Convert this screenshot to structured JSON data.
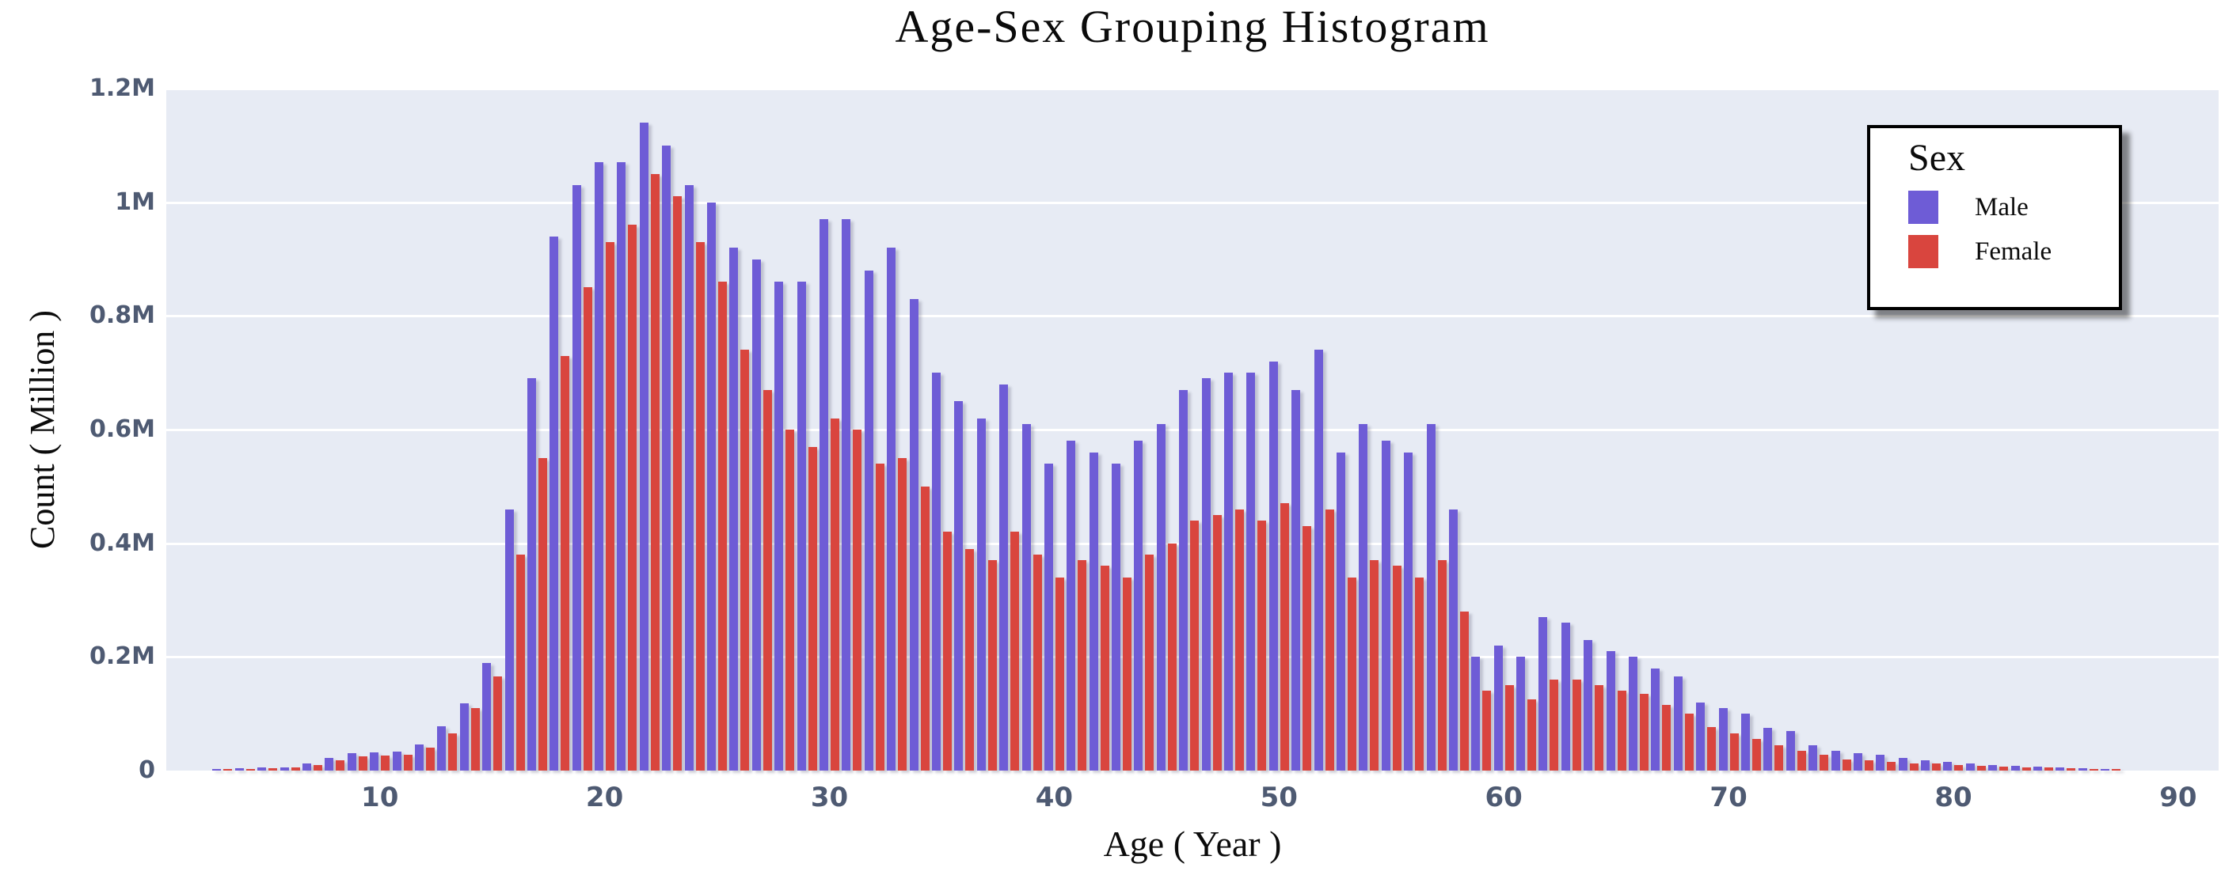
{
  "title": "Age-Sex Grouping Histogram",
  "x_axis_label": "Age ( Year )",
  "y_axis_label": "Count ( Million )",
  "legend": {
    "title": "Sex",
    "items": [
      {
        "label": "Male",
        "color": "#6e5cd6"
      },
      {
        "label": "Female",
        "color": "#d9453e"
      }
    ]
  },
  "colors": {
    "male_bar": "#6e5cd6",
    "female_bar": "#d9453e",
    "plot_background": "#e7ebf4",
    "gridline": "#ffffff",
    "tick_label": "#4e5a72",
    "text": "#0b0b0b"
  },
  "chart_data": {
    "type": "bar",
    "title": "Age-Sex Grouping Histogram",
    "xlabel": "Age ( Year )",
    "ylabel": "Count ( Million )",
    "unit": "Million",
    "grid": true,
    "legend_position": "top-right",
    "xlim": [
      0.5,
      91.8
    ],
    "ylim": [
      0,
      1.2
    ],
    "x_ticks": [
      10,
      20,
      30,
      40,
      50,
      60,
      70,
      80,
      90
    ],
    "y_ticks": [
      {
        "value": 0,
        "label": "0"
      },
      {
        "value": 0.2,
        "label": "0.2M"
      },
      {
        "value": 0.4,
        "label": "0.4M"
      },
      {
        "value": 0.6,
        "label": "0.6M"
      },
      {
        "value": 0.8,
        "label": "0.8M"
      },
      {
        "value": 1.0,
        "label": "1M"
      },
      {
        "value": 1.2,
        "label": "1.2M"
      }
    ],
    "categories": [
      3,
      4,
      5,
      6,
      7,
      8,
      9,
      10,
      11,
      12,
      13,
      14,
      15,
      16,
      17,
      18,
      19,
      20,
      21,
      22,
      23,
      24,
      25,
      26,
      27,
      28,
      29,
      30,
      31,
      32,
      33,
      34,
      35,
      36,
      37,
      38,
      39,
      40,
      41,
      42,
      43,
      44,
      45,
      46,
      47,
      48,
      49,
      50,
      51,
      52,
      53,
      54,
      55,
      56,
      57,
      58,
      59,
      60,
      61,
      62,
      63,
      64,
      65,
      66,
      67,
      68,
      69,
      70,
      71,
      72,
      73,
      74,
      75,
      76,
      77,
      78,
      79,
      80,
      81,
      82,
      83,
      84,
      85,
      86,
      87
    ],
    "series": [
      {
        "name": "Male",
        "color": "#6e5cd6",
        "values": [
          0.003,
          0.004,
          0.005,
          0.006,
          0.012,
          0.022,
          0.03,
          0.032,
          0.033,
          0.046,
          0.078,
          0.118,
          0.19,
          0.46,
          0.69,
          0.94,
          1.03,
          1.07,
          1.07,
          1.14,
          1.1,
          1.03,
          1.0,
          0.92,
          0.9,
          0.86,
          0.86,
          0.97,
          0.97,
          0.88,
          0.92,
          0.83,
          0.7,
          0.65,
          0.62,
          0.68,
          0.61,
          0.54,
          0.58,
          0.56,
          0.54,
          0.58,
          0.61,
          0.67,
          0.69,
          0.7,
          0.7,
          0.72,
          0.67,
          0.74,
          0.56,
          0.61,
          0.58,
          0.56,
          0.61,
          0.46,
          0.2,
          0.22,
          0.2,
          0.27,
          0.26,
          0.23,
          0.21,
          0.2,
          0.18,
          0.165,
          0.12,
          0.11,
          0.1,
          0.075,
          0.07,
          0.045,
          0.035,
          0.03,
          0.028,
          0.022,
          0.018,
          0.015,
          0.012,
          0.01,
          0.008,
          0.007,
          0.005,
          0.004,
          0.003
        ]
      },
      {
        "name": "Female",
        "color": "#d9453e",
        "values": [
          0.002,
          0.003,
          0.004,
          0.006,
          0.01,
          0.018,
          0.025,
          0.026,
          0.028,
          0.04,
          0.066,
          0.11,
          0.165,
          0.38,
          0.55,
          0.73,
          0.85,
          0.93,
          0.96,
          1.05,
          1.01,
          0.93,
          0.86,
          0.74,
          0.67,
          0.6,
          0.57,
          0.62,
          0.6,
          0.54,
          0.55,
          0.5,
          0.42,
          0.39,
          0.37,
          0.42,
          0.38,
          0.34,
          0.37,
          0.36,
          0.34,
          0.38,
          0.4,
          0.44,
          0.45,
          0.46,
          0.44,
          0.47,
          0.43,
          0.46,
          0.34,
          0.37,
          0.36,
          0.34,
          0.37,
          0.28,
          0.14,
          0.15,
          0.125,
          0.16,
          0.16,
          0.15,
          0.14,
          0.135,
          0.115,
          0.1,
          0.077,
          0.065,
          0.055,
          0.045,
          0.035,
          0.028,
          0.02,
          0.018,
          0.016,
          0.013,
          0.012,
          0.01,
          0.008,
          0.007,
          0.006,
          0.005,
          0.004,
          0.003,
          0.002
        ]
      }
    ]
  }
}
